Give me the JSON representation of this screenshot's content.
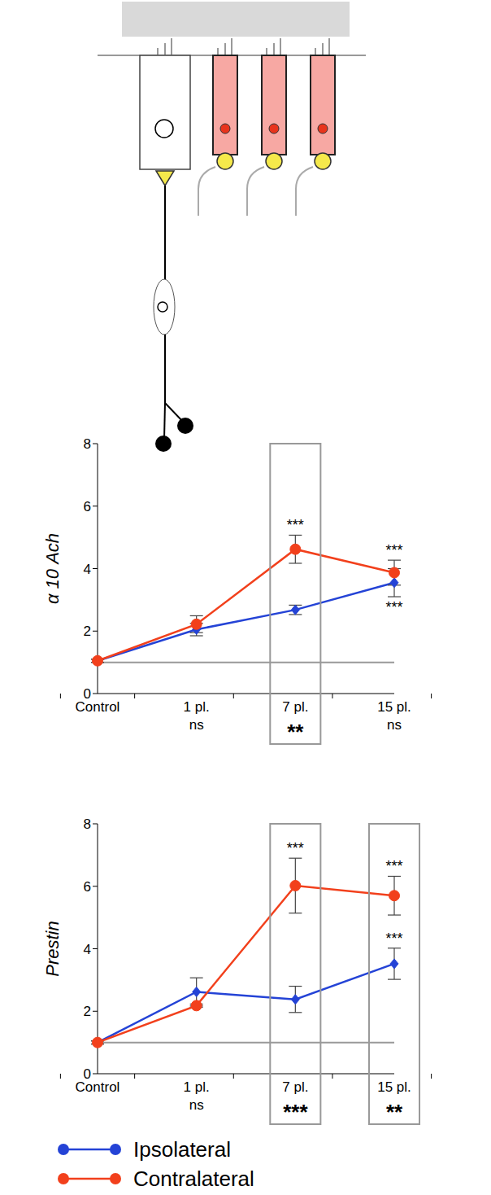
{
  "chart_data": [
    {
      "type": "line",
      "y_label": "α 10 Ach",
      "categories": [
        "Control",
        "1 pl.",
        "7 pl.",
        "15 pl."
      ],
      "comparison_labels": [
        null,
        "ns",
        "**",
        "ns"
      ],
      "boxed": [
        "7 pl."
      ],
      "reference_line": 1,
      "ylim": [
        0,
        8
      ],
      "yticks": [
        0,
        2,
        4,
        6,
        8
      ],
      "series": [
        {
          "name": "Ipsolateral",
          "color": "#2443d6",
          "marker": "diamond",
          "values": [
            1.05,
            2.05,
            2.68,
            3.55
          ],
          "errors": [
            0.05,
            0.2,
            0.15,
            0.45
          ],
          "significance": [
            null,
            null,
            null,
            "***"
          ]
        },
        {
          "name": "Contralateral",
          "color": "#f2401c",
          "marker": "circle",
          "values": [
            1.05,
            2.22,
            4.62,
            3.87
          ],
          "errors": [
            0.05,
            0.27,
            0.45,
            0.4
          ],
          "significance": [
            null,
            null,
            "***",
            "***"
          ]
        }
      ]
    },
    {
      "type": "line",
      "y_label": "Prestin",
      "categories": [
        "Control",
        "1 pl.",
        "7 pl.",
        "15 pl."
      ],
      "comparison_labels": [
        null,
        "ns",
        "***",
        "**"
      ],
      "boxed": [
        "7 pl.",
        "15 pl."
      ],
      "reference_line": 1,
      "ylim": [
        0,
        8
      ],
      "yticks": [
        0,
        2,
        4,
        6,
        8
      ],
      "legend": "bottom",
      "series": [
        {
          "name": "Ipsolateral",
          "color": "#2443d6",
          "marker": "diamond",
          "values": [
            1.0,
            2.62,
            2.38,
            3.52
          ],
          "errors": [
            0.05,
            0.45,
            0.42,
            0.5
          ],
          "significance": [
            null,
            null,
            null,
            "***"
          ]
        },
        {
          "name": "Contralateral",
          "color": "#f2401c",
          "marker": "circle",
          "values": [
            1.0,
            2.18,
            6.02,
            5.7
          ],
          "errors": [
            0.05,
            0.05,
            0.88,
            0.62
          ],
          "significance": [
            null,
            null,
            "***",
            "***"
          ]
        }
      ]
    }
  ]
}
